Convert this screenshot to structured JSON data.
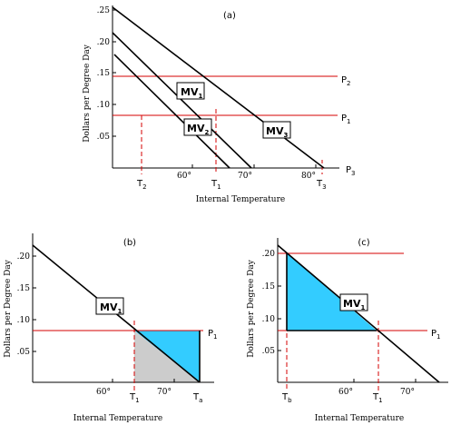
{
  "panel_a": {
    "label": "(a)",
    "ylabel": "Dollars per Degree Day",
    "xlabel": "Internal Temperature",
    "y_ticks": [
      ".25",
      ".20",
      ".15",
      ".10",
      ".05"
    ],
    "x_ticks": [
      "60°",
      "70°",
      "80°"
    ],
    "curves": [
      "MV",
      "MV",
      "MV"
    ],
    "curve_subs": [
      "1",
      "2",
      "3"
    ],
    "price_labels": [
      {
        "main": "P",
        "sub": "2"
      },
      {
        "main": "P",
        "sub": "1"
      },
      {
        "main": "P",
        "sub": "3"
      }
    ],
    "t_labels": [
      {
        "main": "T",
        "sub": "2"
      },
      {
        "main": "T",
        "sub": "1"
      },
      {
        "main": "T",
        "sub": "3"
      }
    ]
  },
  "panel_b": {
    "label": "(b)",
    "ylabel": "Dollars per Degree Day",
    "xlabel": "Internal Temperature",
    "y_ticks": [
      ".20",
      ".15",
      ".10",
      ".05"
    ],
    "x_ticks": [
      "60°",
      "70°"
    ],
    "curve": "MV",
    "curve_sub": "1",
    "price_label": {
      "main": "P",
      "sub": "1"
    },
    "t_labels": [
      {
        "main": "T",
        "sub": "1"
      },
      {
        "main": "T",
        "sub": "a"
      }
    ]
  },
  "panel_c": {
    "label": "(c)",
    "ylabel": "Dollars per Degree Day",
    "xlabel": "Internal Temperature",
    "y_ticks": [
      ".20",
      ".15",
      ".10",
      ".05"
    ],
    "x_ticks": [
      "60°",
      "70°"
    ],
    "curve": "MV",
    "curve_sub": "1",
    "price_label": {
      "main": "P",
      "sub": "1"
    },
    "t_labels": [
      {
        "main": "T",
        "sub": "b"
      },
      {
        "main": "T",
        "sub": "1"
      }
    ]
  },
  "colors": {
    "red": "#d40000",
    "blue": "#33ccff",
    "gray": "#cccccc"
  }
}
